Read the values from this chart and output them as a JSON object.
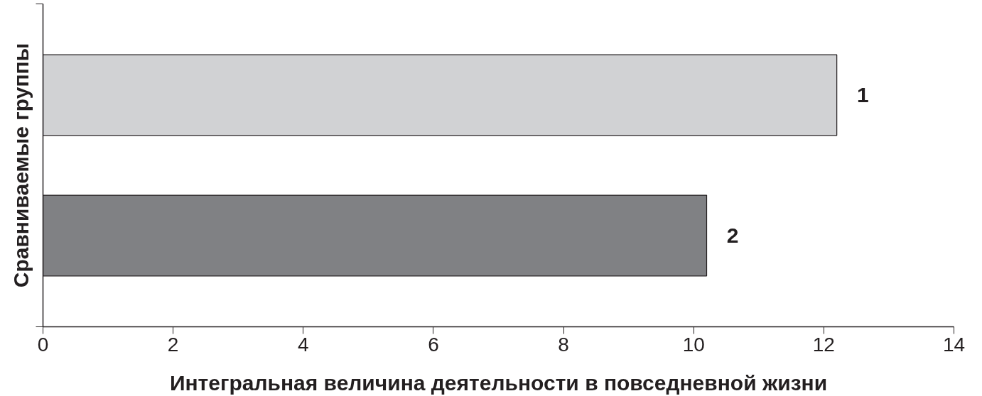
{
  "chart_data": {
    "type": "bar",
    "orientation": "horizontal",
    "xlabel": "Интегральная величина деятельности в повседневной жизни",
    "ylabel": "Сравниваемые группы",
    "categories": [
      "1",
      "2"
    ],
    "values": [
      12.2,
      10.2
    ],
    "colors": [
      "#d1d2d4",
      "#808184"
    ],
    "xlim": [
      0,
      14
    ],
    "xticks": [
      0,
      2,
      4,
      6,
      8,
      10,
      12,
      14
    ],
    "grid": false
  }
}
